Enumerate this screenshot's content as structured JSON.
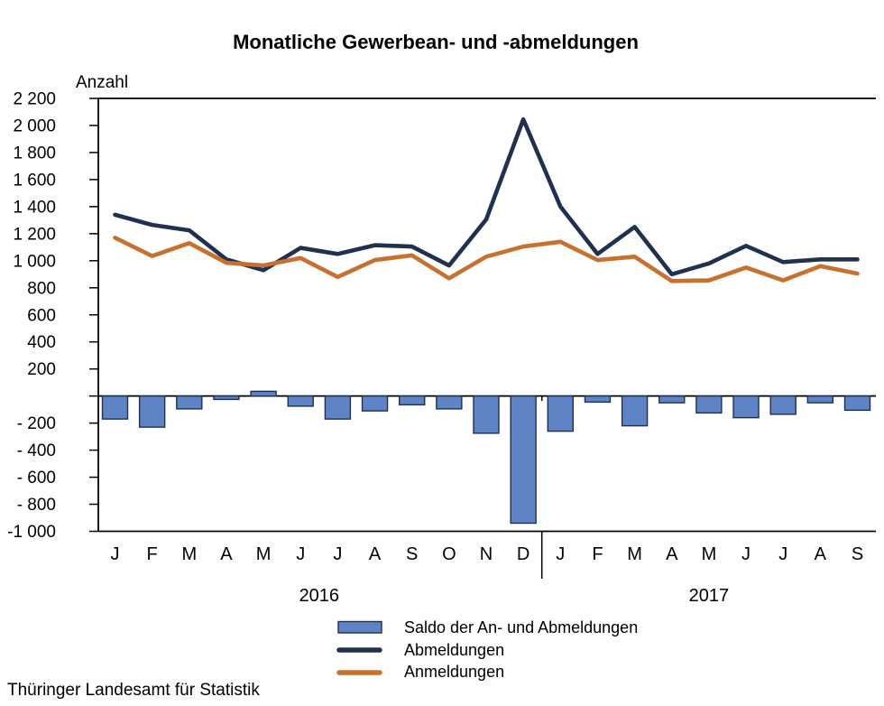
{
  "title": "Monatliche Gewerbean- und -abmeldungen",
  "y_axis_title": "Anzahl",
  "source": "Thüringer Landesamt für Statistik",
  "colors": {
    "saldo_fill": "#5E84C6",
    "saldo_border": "#1F3051",
    "abmeldungen_line": "#1F3051",
    "anmeldungen_line": "#C8702E",
    "axis": "#000000"
  },
  "legend": [
    {
      "label": "Saldo der An- und Abmeldungen",
      "type": "bar",
      "fill": "#5E84C6",
      "border": "#1F3051"
    },
    {
      "label": "Abmeldungen",
      "type": "line",
      "color": "#1F3051"
    },
    {
      "label": "Anmeldungen",
      "type": "line",
      "color": "#C8702E"
    }
  ],
  "chart_data": {
    "type": "combo-bar-line",
    "title": "Monatliche Gewerbean- und -abmeldungen",
    "ylabel": "Anzahl",
    "ylim": [
      -1000,
      2200
    ],
    "ytick_step": 200,
    "ytick_labels_top_to_bottom": [
      "2 200",
      "2 000",
      "1 800",
      "1 600",
      "1 400",
      "1 200",
      "1 000",
      "800",
      "600",
      "400",
      "200",
      "",
      "- 200",
      "- 400",
      "- 600",
      "- 800",
      "-1 000"
    ],
    "grid": false,
    "legend_position": "bottom",
    "x_groups": [
      {
        "year": "2016",
        "months": [
          "J",
          "F",
          "M",
          "A",
          "M",
          "J",
          "J",
          "A",
          "S",
          "O",
          "N",
          "D"
        ]
      },
      {
        "year": "2017",
        "months": [
          "J",
          "F",
          "M",
          "A",
          "M",
          "J",
          "J",
          "A",
          "S"
        ]
      }
    ],
    "series": [
      {
        "name": "Saldo der An- und Abmeldungen",
        "type": "bar",
        "fill": "#5E84C6",
        "border": "#1F3051",
        "values": [
          -170,
          -230,
          -95,
          -25,
          35,
          -75,
          -170,
          -110,
          -65,
          -95,
          -275,
          -940,
          -260,
          -45,
          -220,
          -50,
          -125,
          -160,
          -135,
          -50,
          -105
        ]
      },
      {
        "name": "Abmeldungen",
        "type": "line",
        "color": "#1F3051",
        "values": [
          1340,
          1265,
          1225,
          1010,
          930,
          1095,
          1050,
          1115,
          1105,
          965,
          1305,
          2045,
          1400,
          1050,
          1250,
          900,
          980,
          1110,
          990,
          1010,
          1010
        ]
      },
      {
        "name": "Anmeldungen",
        "type": "line",
        "color": "#C8702E",
        "values": [
          1170,
          1035,
          1130,
          985,
          965,
          1020,
          880,
          1005,
          1040,
          870,
          1030,
          1105,
          1140,
          1005,
          1030,
          850,
          855,
          950,
          855,
          960,
          905
        ]
      }
    ]
  }
}
